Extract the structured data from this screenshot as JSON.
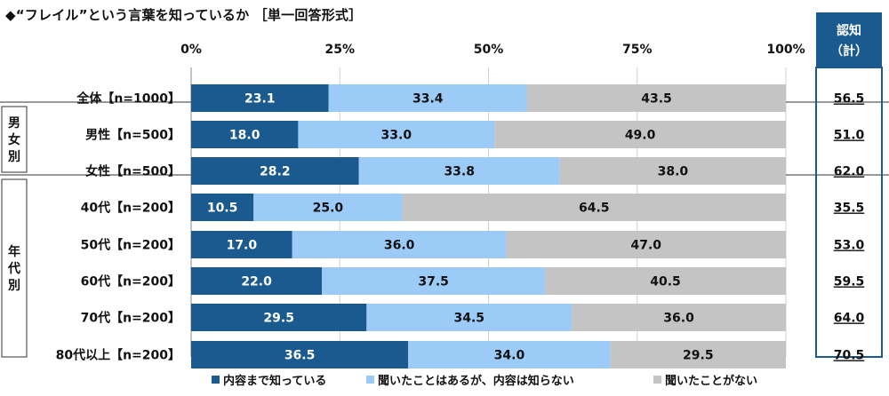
{
  "title": "◆“フレイル”という言葉を知っているか ［単一回答形式］",
  "recog_header": [
    "認知",
    "（計）"
  ],
  "chart_data": {
    "type": "bar",
    "orientation": "horizontal",
    "stacked": true,
    "x_ticks": [
      "0%",
      "25%",
      "50%",
      "75%",
      "100%"
    ],
    "xlim": [
      0,
      100
    ],
    "categories": [
      "全体【n=1000】",
      "男性【n=500】",
      "女性【n=500】",
      "40代【n=200】",
      "50代【n=200】",
      "60代【n=200】",
      "70代【n=200】",
      "80代以上【n=200】"
    ],
    "groups": [
      {
        "label": "男女別",
        "rows": [
          1,
          2
        ]
      },
      {
        "label": "年代別",
        "rows": [
          3,
          4,
          5,
          6,
          7
        ]
      }
    ],
    "series": [
      {
        "name": "内容まで知っている",
        "color": "#1a5a8e",
        "label_color": "#ffffff",
        "values": [
          23.1,
          18.0,
          28.2,
          10.5,
          17.0,
          22.0,
          29.5,
          36.5
        ],
        "labels": [
          "23.1",
          "18.0",
          "28.2",
          "10.5",
          "17.0",
          "22.0",
          "29.5",
          "36.5"
        ]
      },
      {
        "name": "聞いたことはあるが、内容は知らない",
        "color": "#9dcbf7",
        "label_color": "#111111",
        "values": [
          33.4,
          33.0,
          33.8,
          25.0,
          36.0,
          37.5,
          34.5,
          34.0
        ],
        "labels": [
          "33.4",
          "33.0",
          "33.8",
          "25.0",
          "36.0",
          "37.5",
          "34.5",
          "34.0"
        ]
      },
      {
        "name": "聞いたことがない",
        "color": "#c4c4c4",
        "label_color": "#111111",
        "values": [
          43.5,
          49.0,
          38.0,
          64.5,
          47.0,
          40.5,
          36.0,
          29.5
        ],
        "labels": [
          "43.5",
          "49.0",
          "38.0",
          "64.5",
          "47.0",
          "40.5",
          "36.0",
          "29.5"
        ]
      }
    ],
    "recognition_total": [
      "56.5",
      "51.0",
      "62.0",
      "35.5",
      "53.0",
      "59.5",
      "64.0",
      "70.5"
    ],
    "grid": true,
    "legend_position": "bottom"
  }
}
